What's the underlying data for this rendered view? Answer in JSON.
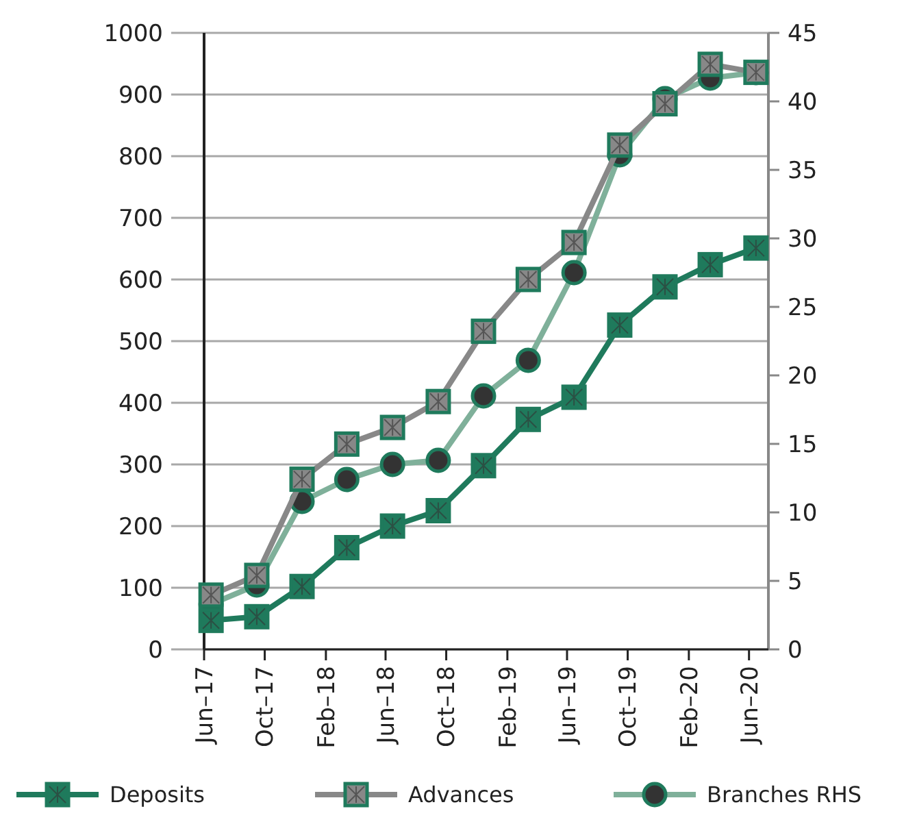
{
  "chart_data": {
    "type": "line",
    "x": [
      "2017-06-15",
      "2017-09-15",
      "2017-12-15",
      "2018-03-15",
      "2018-06-15",
      "2018-09-15",
      "2018-12-15",
      "2019-03-15",
      "2019-06-15",
      "2019-09-15",
      "2019-12-15",
      "2020-03-15",
      "2020-06-15"
    ],
    "series": [
      {
        "name": "Deposits",
        "color": "#1f7a5c",
        "marker": "square",
        "values": [
          47,
          53,
          102,
          165,
          200,
          225,
          298,
          373,
          409,
          526,
          588,
          624,
          651
        ]
      },
      {
        "name": "Advances",
        "color": "#888888",
        "marker": "square",
        "values": [
          88,
          120,
          276,
          333,
          360,
          402,
          516,
          600,
          660,
          818,
          885,
          949,
          936
        ]
      },
      {
        "name": "Branches RHS",
        "color": "#7fb09a",
        "marker": "circle",
        "axis": "y2",
        "values": [
          3.3,
          4.7,
          10.8,
          12.4,
          13.5,
          13.8,
          18.5,
          21.1,
          27.5,
          36.1,
          40.2,
          41.7,
          42.1
        ]
      }
    ],
    "xlim": [
      "2017-06-01",
      "2020-07-10"
    ],
    "xticks": [
      {
        "value": "2017-06-01",
        "label": "Jun–17"
      },
      {
        "value": "2017-10-01",
        "label": "Oct–17"
      },
      {
        "value": "2018-02-01",
        "label": "Feb–18"
      },
      {
        "value": "2018-06-01",
        "label": "Jun–18"
      },
      {
        "value": "2018-10-01",
        "label": "Oct–18"
      },
      {
        "value": "2019-02-01",
        "label": "Feb–19"
      },
      {
        "value": "2019-06-01",
        "label": "Jun–19"
      },
      {
        "value": "2019-10-01",
        "label": "Oct–19"
      },
      {
        "value": "2020-02-01",
        "label": "Feb–20"
      },
      {
        "value": "2020-06-01",
        "label": "Jun–20"
      }
    ],
    "ylim": [
      0,
      1000
    ],
    "yticks": [
      0,
      100,
      200,
      300,
      400,
      500,
      600,
      700,
      800,
      900,
      1000
    ],
    "y2lim": [
      0,
      45
    ],
    "y2ticks": [
      0,
      5,
      10,
      15,
      20,
      25,
      30,
      35,
      40,
      45
    ],
    "grid": "y",
    "legend": "bottom"
  }
}
